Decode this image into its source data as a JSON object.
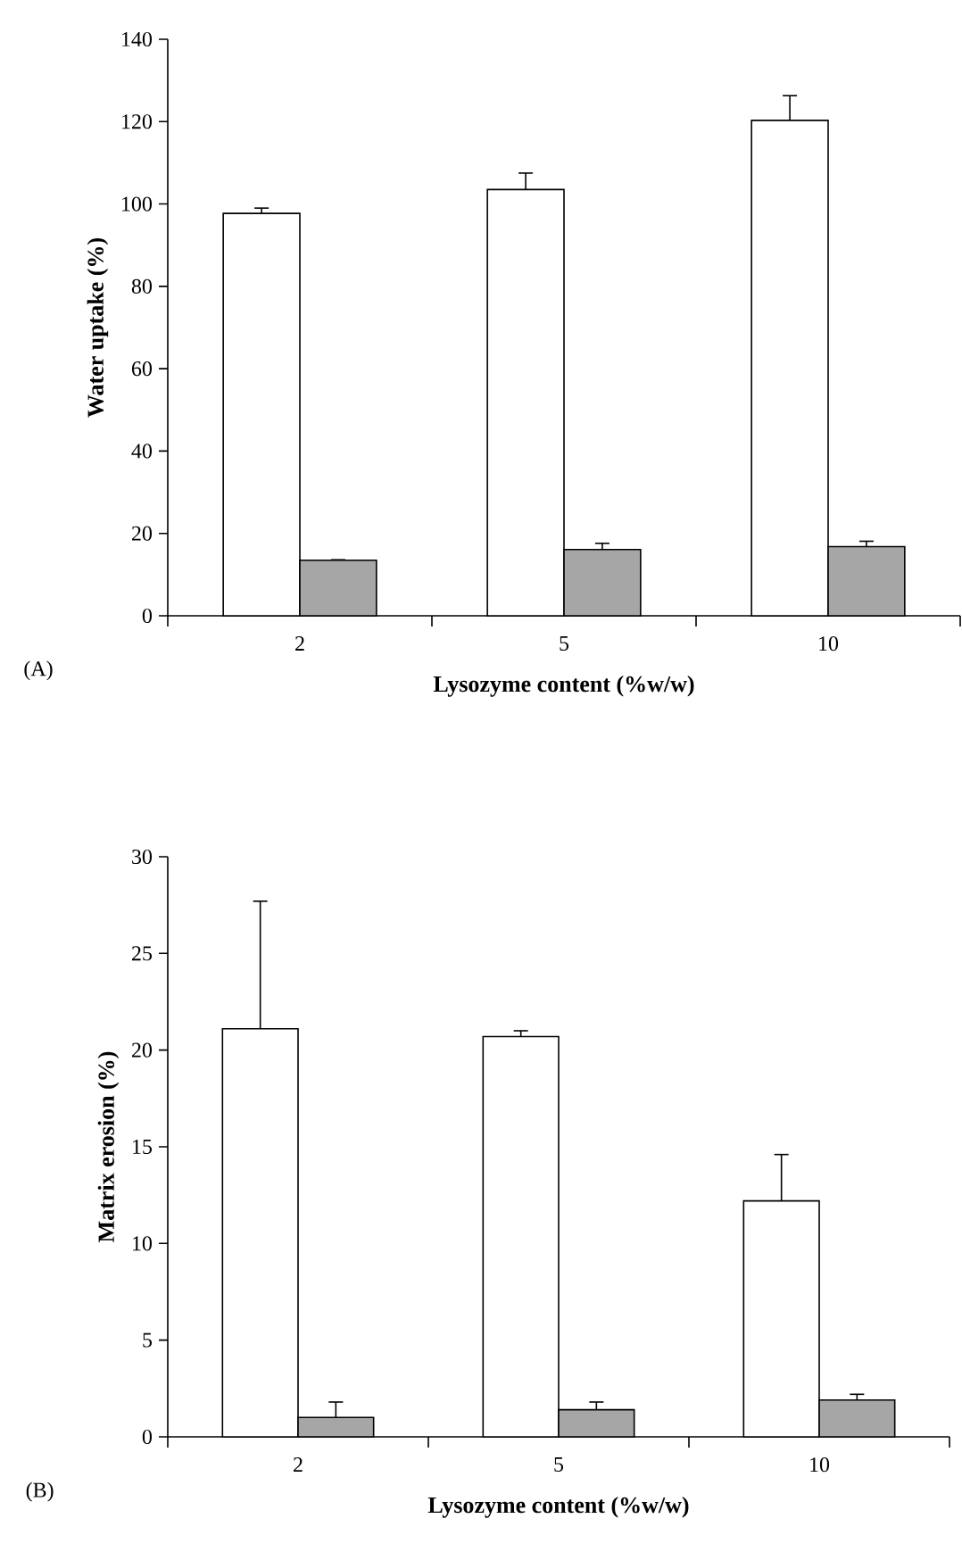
{
  "chart_data": [
    {
      "type": "bar",
      "categories": [
        "2",
        "5",
        "10"
      ],
      "xlabel": "Lysozyme content (%w/w)",
      "ylabel": "Water uptake (%)",
      "ylim": [
        0,
        140
      ],
      "yticks": [
        0,
        20,
        40,
        60,
        80,
        100,
        120,
        140
      ],
      "annotations": [
        "(A)"
      ],
      "series": [
        {
          "color": "#ffffff",
          "values": [
            97.7,
            103.5,
            120.3
          ],
          "errors": [
            [
              97.7,
              99.0
            ],
            [
              103.5,
              107.5
            ],
            [
              120.3,
              126.3
            ]
          ]
        },
        {
          "color": "#a6a6a6",
          "values": [
            13.5,
            16.1,
            16.8
          ],
          "errors": [
            [
              13.5,
              13.6
            ],
            [
              16.1,
              17.6
            ],
            [
              16.8,
              18.1
            ]
          ]
        }
      ]
    },
    {
      "type": "bar",
      "categories": [
        "2",
        "5",
        "10"
      ],
      "xlabel": "Lysozyme content (%w/w)",
      "ylabel": "Matrix erosion (%)",
      "ylim": [
        0,
        30
      ],
      "yticks": [
        0,
        5,
        10,
        15,
        20,
        25,
        30
      ],
      "annotations": [
        "(B)"
      ],
      "series": [
        {
          "color": "#ffffff",
          "values": [
            21.1,
            20.7,
            12.2
          ],
          "errors": [
            [
              21.1,
              27.7
            ],
            [
              20.7,
              21.0
            ],
            [
              12.2,
              14.6
            ]
          ]
        },
        {
          "color": "#a6a6a6",
          "values": [
            1.0,
            1.4,
            1.9
          ],
          "errors": [
            [
              1.0,
              1.8
            ],
            [
              1.4,
              1.8
            ],
            [
              1.9,
              2.2
            ]
          ]
        }
      ]
    }
  ]
}
